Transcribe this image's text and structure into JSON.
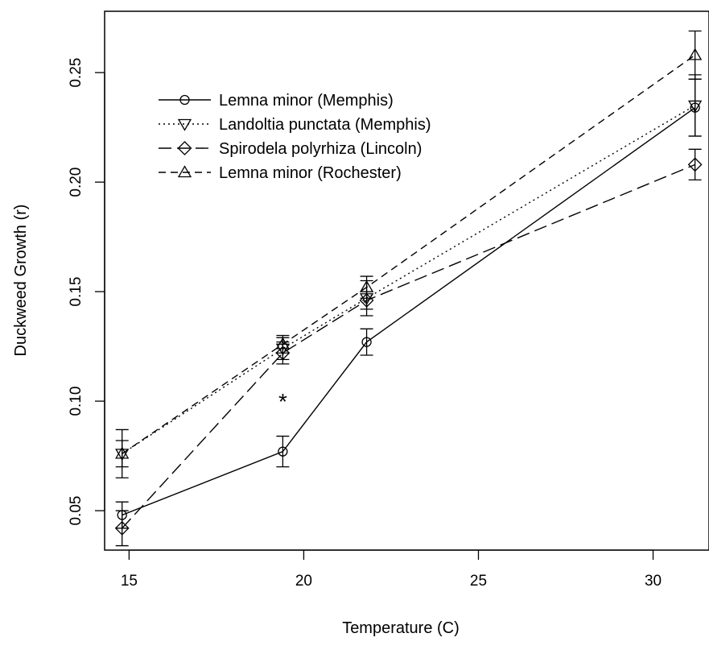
{
  "chart_data": {
    "type": "line",
    "title": "",
    "xlabel": "Temperature (C)",
    "ylabel": "Duckweed Growth (r)",
    "xlim": [
      14.3,
      31.6
    ],
    "ylim": [
      0.032,
      0.278
    ],
    "xticks": [
      "15",
      "20",
      "25",
      "30"
    ],
    "yticks": [
      "0.05",
      "0.10",
      "0.15",
      "0.20",
      "0.25"
    ],
    "grid": false,
    "legend_position": "top-left",
    "annotations": [
      {
        "text": "*",
        "x": 19.4,
        "y": 0.1
      }
    ],
    "series": [
      {
        "name": "Lemna minor (Memphis)",
        "marker": "circle",
        "dash": "solid",
        "x": [
          14.8,
          19.4,
          21.8,
          31.2
        ],
        "y": [
          0.048,
          0.077,
          0.127,
          0.234
        ],
        "err": [
          0.006,
          0.007,
          0.006,
          0.013
        ]
      },
      {
        "name": "Landoltia punctata (Memphis)",
        "marker": "triangle-down",
        "dash": "dotted",
        "x": [
          14.8,
          19.4,
          21.8,
          31.2
        ],
        "y": [
          0.076,
          0.124,
          0.147,
          0.235
        ],
        "err": [
          0.011,
          0.005,
          0.008,
          0.014
        ]
      },
      {
        "name": "Spirodela polyrhiza (Lincoln)",
        "marker": "diamond",
        "dash": "longdash",
        "x": [
          14.8,
          19.4,
          21.8,
          31.2
        ],
        "y": [
          0.042,
          0.122,
          0.146,
          0.208
        ],
        "err": [
          0.008,
          0.005,
          0.004,
          0.007
        ]
      },
      {
        "name": "Lemna minor (Rochester)",
        "marker": "triangle-up",
        "dash": "dashed",
        "x": [
          14.8,
          19.4,
          21.8,
          31.2
        ],
        "y": [
          0.076,
          0.126,
          0.152,
          0.258
        ],
        "err": [
          0.006,
          0.004,
          0.005,
          0.011
        ]
      }
    ]
  }
}
